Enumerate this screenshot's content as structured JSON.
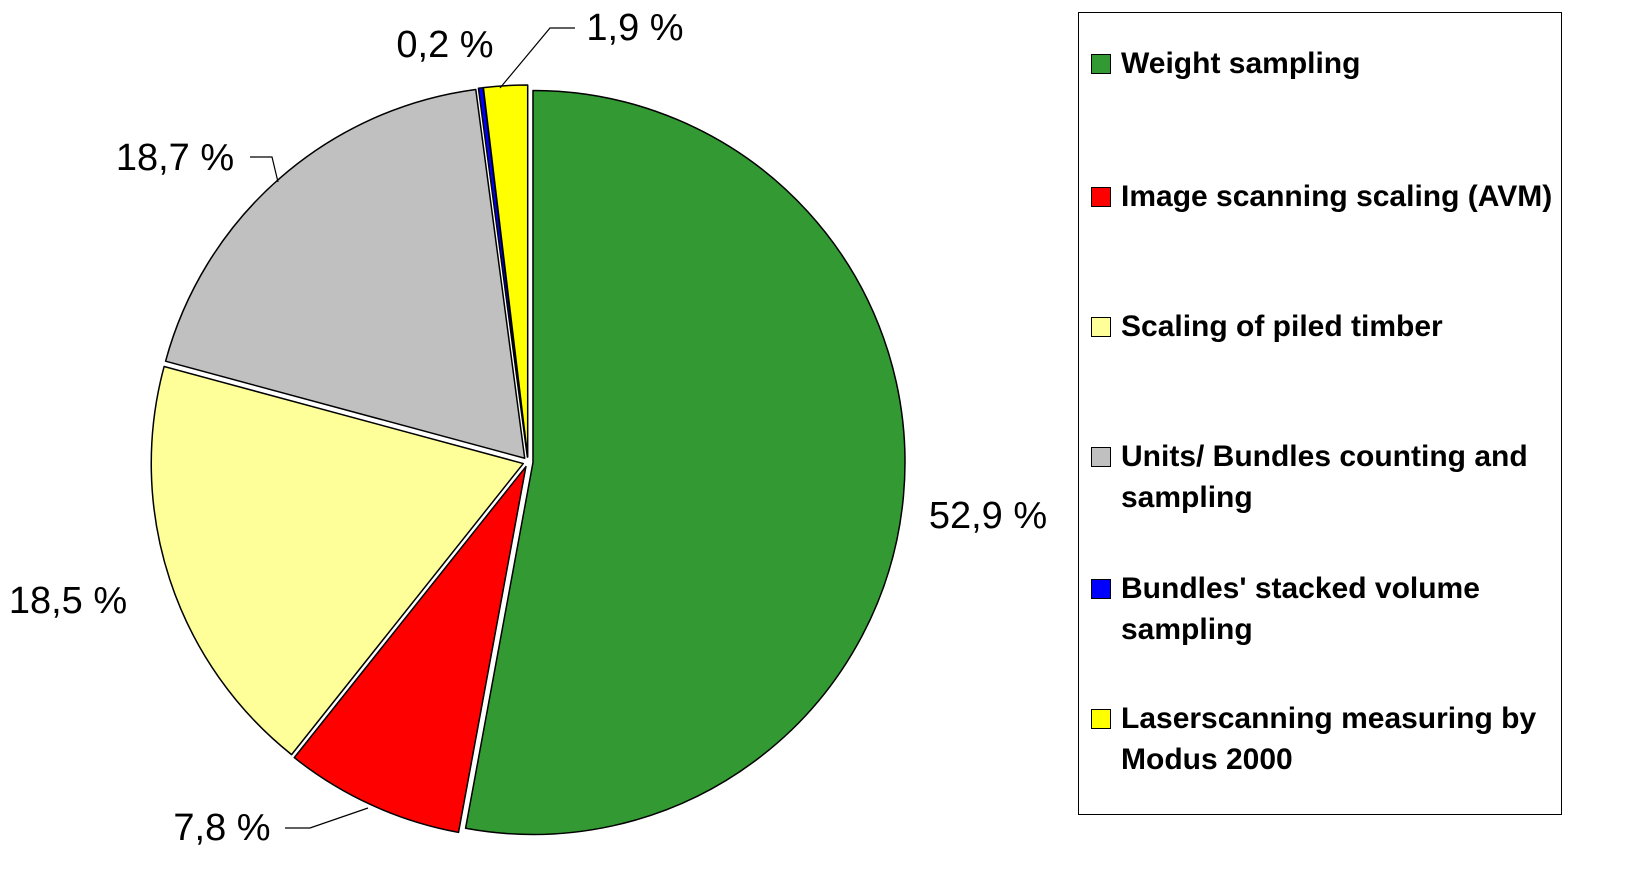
{
  "chart_data": {
    "type": "pie",
    "series": [
      {
        "name": "Weight sampling",
        "color": "#339933"
      },
      {
        "name": "Image scanning scaling (AVM)",
        "color": "#ff0000"
      },
      {
        "name": "Scaling of piled timber",
        "color": "#ffff99"
      },
      {
        "name": "Units/ Bundles counting and sampling",
        "color": "#c0c0c0"
      },
      {
        "name": "Bundles' stacked volume sampling",
        "color": "#0000ff"
      },
      {
        "name": "Laserscanning measuring by Modus 2000",
        "color": "#ffff00"
      }
    ],
    "values": [
      52.9,
      7.8,
      18.5,
      18.7,
      0.2,
      1.9
    ],
    "value_labels": [
      "52,9 %",
      "7,8 %",
      "18,5 %",
      "18,7 %",
      "0,2 %",
      "1,9 %"
    ],
    "legend": "right"
  }
}
